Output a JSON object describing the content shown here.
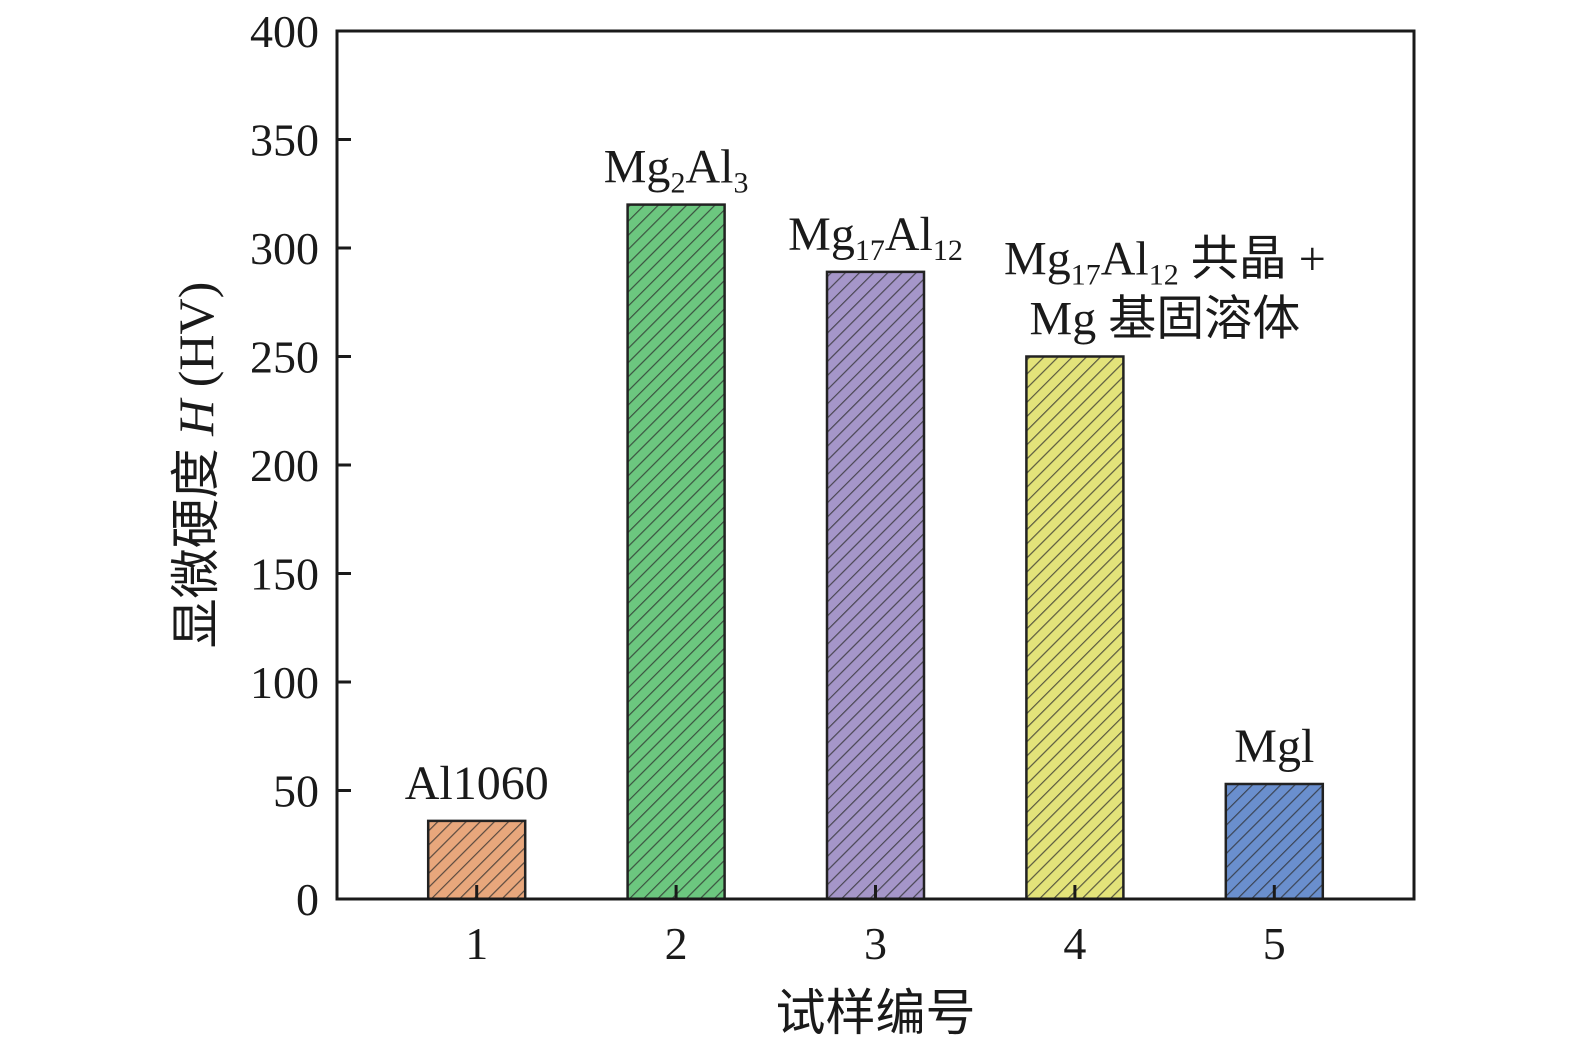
{
  "chart_data": {
    "type": "bar",
    "title": "",
    "xlabel": "试样编号",
    "ylabel": "显微硬度 H (HV)",
    "ylabel_parts": {
      "pre": "显微硬度 ",
      "var": "H",
      "post": " (HV)"
    },
    "categories": [
      "1",
      "2",
      "3",
      "4",
      "5"
    ],
    "values": [
      36,
      320,
      289,
      250,
      53
    ],
    "colors": [
      "#e8a77c",
      "#6cc77f",
      "#a596c9",
      "#e3e37a",
      "#6a8fce"
    ],
    "ylim": [
      0,
      400
    ],
    "yticks": [
      "0",
      "50",
      "100",
      "150",
      "200",
      "250",
      "300",
      "350",
      "400"
    ],
    "grid": false,
    "annotations": [
      {
        "lines": [
          [
            {
              "t": "Al1060"
            }
          ]
        ]
      },
      {
        "lines": [
          [
            {
              "t": "Mg"
            },
            {
              "t": "2",
              "sub": true
            },
            {
              "t": "Al"
            },
            {
              "t": "3",
              "sub": true
            }
          ]
        ]
      },
      {
        "lines": [
          [
            {
              "t": "Mg"
            },
            {
              "t": "17",
              "sub": true
            },
            {
              "t": "Al"
            },
            {
              "t": "12",
              "sub": true
            }
          ]
        ]
      },
      {
        "lines": [
          [
            {
              "t": "Mg"
            },
            {
              "t": "17",
              "sub": true
            },
            {
              "t": "Al"
            },
            {
              "t": "12",
              "sub": true
            },
            {
              "t": " 共晶 +"
            }
          ],
          [
            {
              "t": "Mg 基固溶体"
            }
          ]
        ]
      },
      {
        "lines": [
          [
            {
              "t": "Mgl"
            }
          ]
        ]
      }
    ]
  }
}
